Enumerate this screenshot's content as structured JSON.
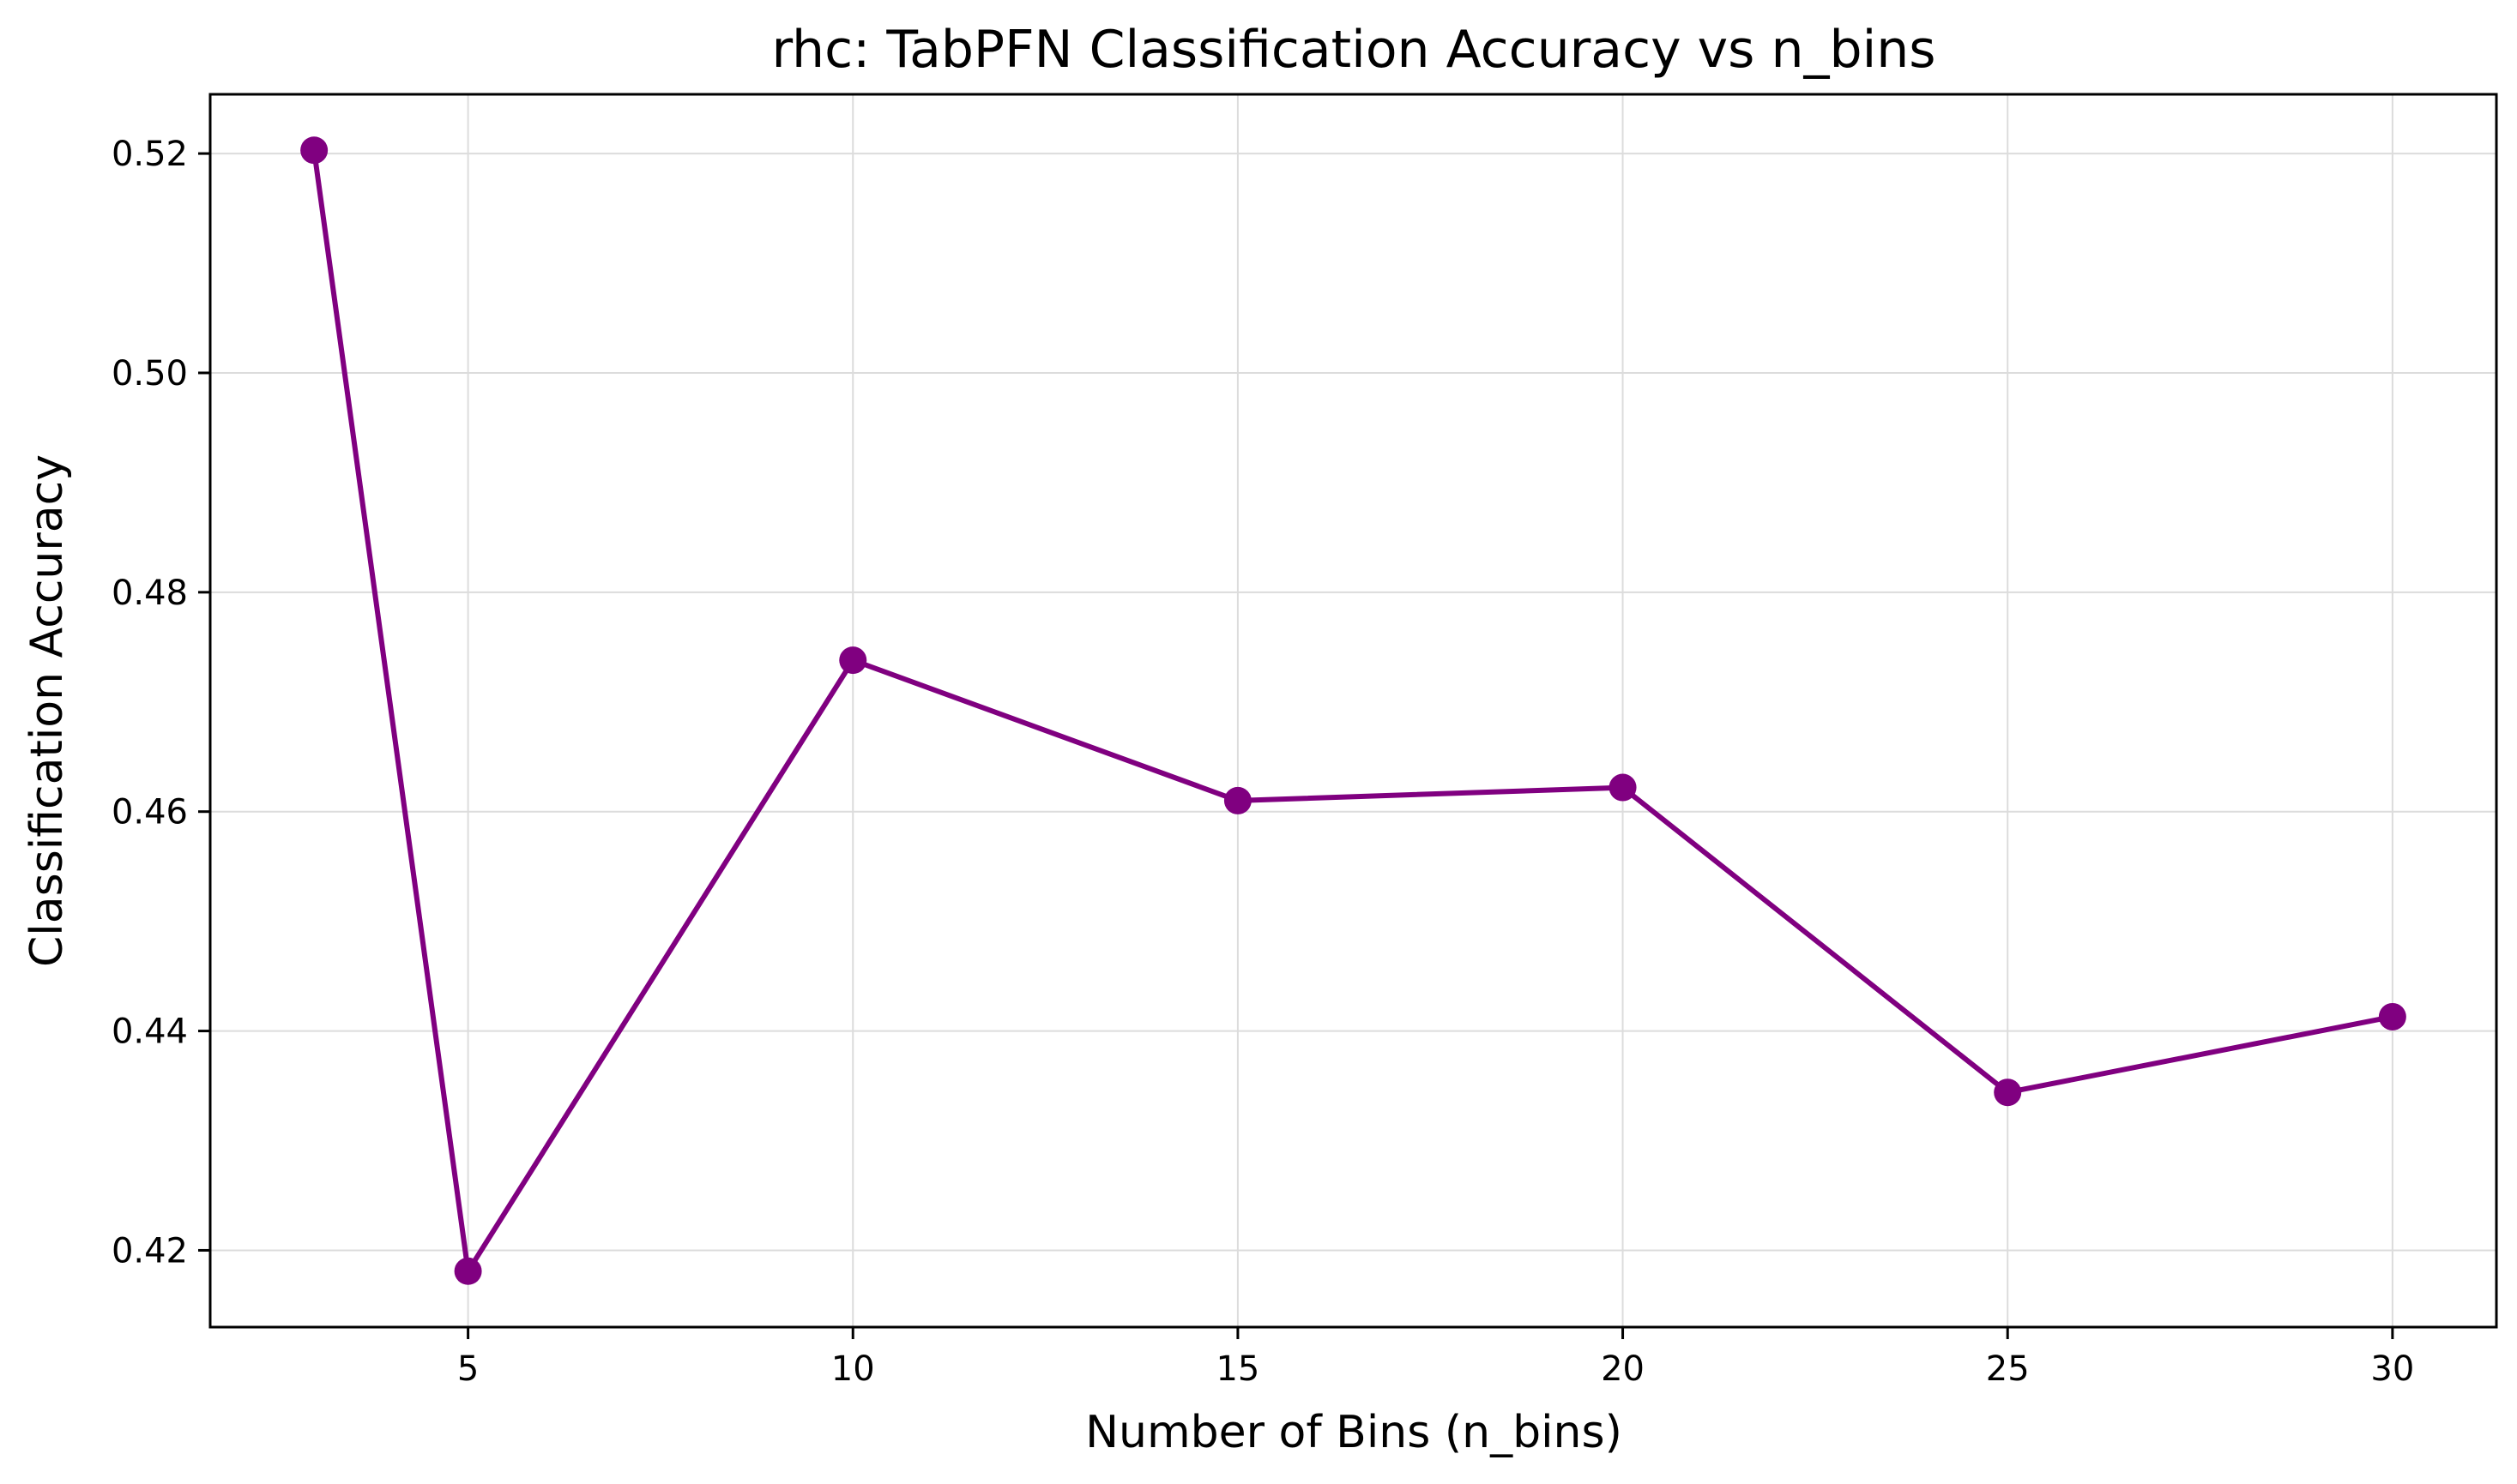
{
  "chart_data": {
    "type": "line",
    "title": "rhc: TabPFN Classification Accuracy vs n_bins",
    "xlabel": "Number of Bins (n_bins)",
    "ylabel": "Classification Accuracy",
    "x": [
      3,
      5,
      10,
      15,
      20,
      25,
      30
    ],
    "series": [
      {
        "values": [
          0.5203,
          0.4181,
          0.4738,
          0.461,
          0.4622,
          0.4344,
          0.4413
        ],
        "color": "#800080",
        "marker": "circle"
      }
    ],
    "xlim": [
      1.65,
      31.35
    ],
    "ylim": [
      0.413,
      0.5254
    ],
    "xticks": [
      5,
      10,
      15,
      20,
      25,
      30
    ],
    "xtick_labels": [
      "5",
      "10",
      "15",
      "20",
      "25",
      "30"
    ],
    "yticks": [
      0.42,
      0.44,
      0.46,
      0.48,
      0.5,
      0.52
    ],
    "ytick_labels": [
      "0.42",
      "0.44",
      "0.46",
      "0.48",
      "0.50",
      "0.52"
    ],
    "grid": true,
    "legend": "none"
  }
}
